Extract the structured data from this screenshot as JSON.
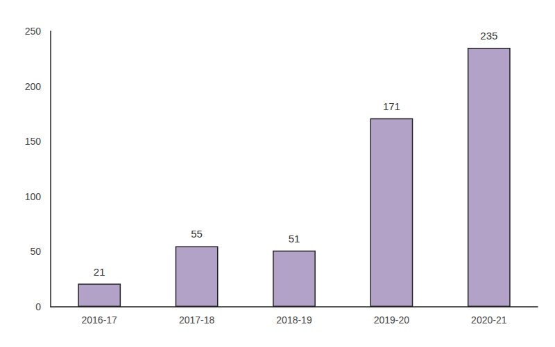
{
  "chart_data": {
    "type": "bar",
    "categories": [
      "2016-17",
      "2017-18",
      "2018-19",
      "2019-20",
      "2020-21"
    ],
    "values": [
      21,
      55,
      51,
      171,
      235
    ],
    "color": "#b3a2c8",
    "ylim": [
      0,
      250
    ],
    "yticks": [
      0,
      50,
      100,
      150,
      200,
      250
    ],
    "grid": false,
    "data_labels": true
  }
}
